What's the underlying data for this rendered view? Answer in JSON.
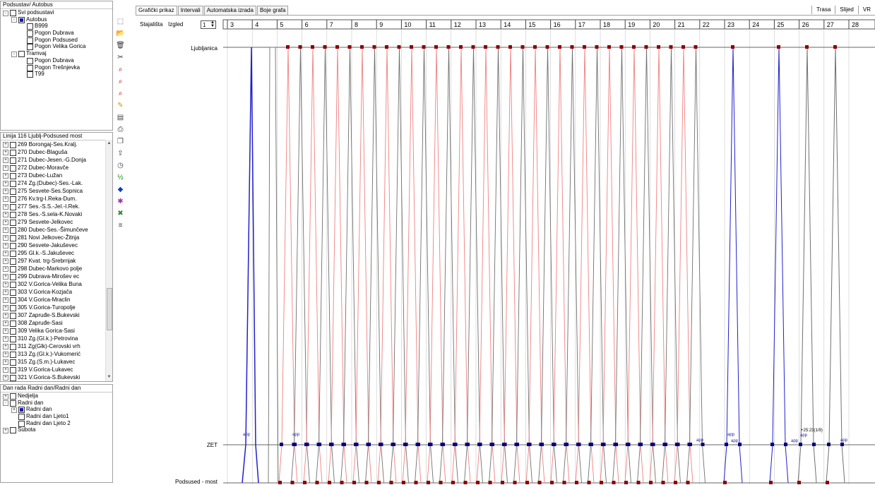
{
  "panels": {
    "podsustav": {
      "title": "Podsustav/ Autobus",
      "nodes": [
        {
          "label": "Svi podsustavi",
          "level": 0,
          "expander": "-",
          "checked": false
        },
        {
          "label": "Autobus",
          "level": 1,
          "expander": "-",
          "checked": true
        },
        {
          "label": "B999",
          "level": 2,
          "checked": false
        },
        {
          "label": "Pogon Dubrava",
          "level": 2,
          "checked": false
        },
        {
          "label": "Pogon Podsused",
          "level": 2,
          "checked": false
        },
        {
          "label": "Pogon Velika Gorica",
          "level": 2,
          "checked": false
        },
        {
          "label": "Tramvaj",
          "level": 1,
          "expander": "-",
          "checked": false
        },
        {
          "label": "Pogon Dubrava",
          "level": 2,
          "checked": false
        },
        {
          "label": "Pogon Trešnjevka",
          "level": 2,
          "checked": false
        },
        {
          "label": "T99",
          "level": 2,
          "checked": false
        }
      ]
    },
    "linija": {
      "title": "Linija 116 Ljublj-Podsused most",
      "lines": [
        "269 Borongaj-Ses.Kralj.",
        "270 Dubec-Blaguša",
        "271 Dubec-Jesen.-G.Donja",
        "272 Dubec-Moravče",
        "273 Dubec-Lužan",
        "274 Zg.(Dubec)-Ses.-Lak.",
        "275 Sesvete-Ses.Sopnica",
        "276 Kv.trg-I.Reka-Dum.",
        "277 Ses.-S.S.-Jel.-I.Rek.",
        "278 Ses.-S.sela-K.Novaki",
        "279 Sesvete-Jelkovec",
        "280 Dubec-Ses.-Šimunčeve",
        "281 Novi Jelkovec-Žitnja",
        "290 Sesvete-Jakuševec",
        "295 Gl.k.-S.Jakuševec",
        "297 Kvat. trg-Srebrnjak",
        "298 Dubec-Markovo polje",
        "299 Dubrava-Mirošev ec",
        "302 V.Gorica-Velika Buna",
        "303 V.Gorica-Kozjača",
        "304 V.Gorica-Mraclin",
        "305 V.Gorica-Turopolje",
        "307 Zapruđe-S.Bukevski",
        "308 Zapruđe-Sasi",
        "309 Velika Gorica-Sasi",
        "310 Zg.(Gl.k.)-Petrovina",
        "311 Zg(Glk)-Cerovski vrh",
        "313 Zg.(Gl.k.)-Vukomerić",
        "315 Zg.(S.m.)-Lukavec",
        "319 V.Gorica-Lukavec",
        "321 V.Gorica-S.Bukevski"
      ]
    },
    "dan": {
      "title": "Dan rada  Radni dan/Radni dan",
      "nodes": [
        {
          "label": "Nedjelja",
          "level": 0,
          "expander": "+",
          "checked": false
        },
        {
          "label": "Radni dan",
          "level": 0,
          "expander": "-",
          "checked": false
        },
        {
          "label": "Radni dan",
          "level": 1,
          "expander": "+",
          "checked": true
        },
        {
          "label": "Radni dan Ljeto1",
          "level": 1,
          "checked": false
        },
        {
          "label": "Radni dan Ljeto 2",
          "level": 1,
          "checked": false
        },
        {
          "label": "Subota",
          "level": 0,
          "expander": "+",
          "checked": false
        }
      ]
    }
  },
  "toolbar_icons": [
    "new-icon",
    "open-icon",
    "delete-icon",
    "cut-icon",
    "find-icon",
    "find-next-icon",
    "find-prev-icon",
    "edit-icon",
    "save-icon",
    "print-icon",
    "copy-icon",
    "export-icon",
    "clock-icon",
    "numbering-icon",
    "tag-icon",
    "filter-icon",
    "clear-filter-icon",
    "text-icon"
  ],
  "tabs": [
    "Grafički prikaz",
    "Intervali",
    "Automatska izrada",
    "Boje grafa"
  ],
  "tabs_right": [
    "Trasa",
    "Slijed",
    "VR"
  ],
  "controls": {
    "stajalista_label": "Stajališta",
    "izgled_label": "Izgled",
    "spin_value": "1"
  },
  "graph": {
    "hours": [
      "3",
      "4",
      "5",
      "6",
      "7",
      "8",
      "9",
      "10",
      "11",
      "12",
      "13",
      "14",
      "15",
      "16",
      "17",
      "18",
      "19",
      "20",
      "21",
      "22",
      "23",
      "24",
      "25",
      "26",
      "27",
      "28"
    ],
    "stations": [
      "Ljubljanica",
      "ZET",
      "Podsused - most"
    ],
    "annotations": {
      "app": "app",
      "time_note": "+25:23(1/9)"
    },
    "colors": {
      "gray": "#707070",
      "red": "#f08080",
      "blue": "#2020d0",
      "darkred": "#8b0000",
      "navy": "#000080"
    }
  }
}
